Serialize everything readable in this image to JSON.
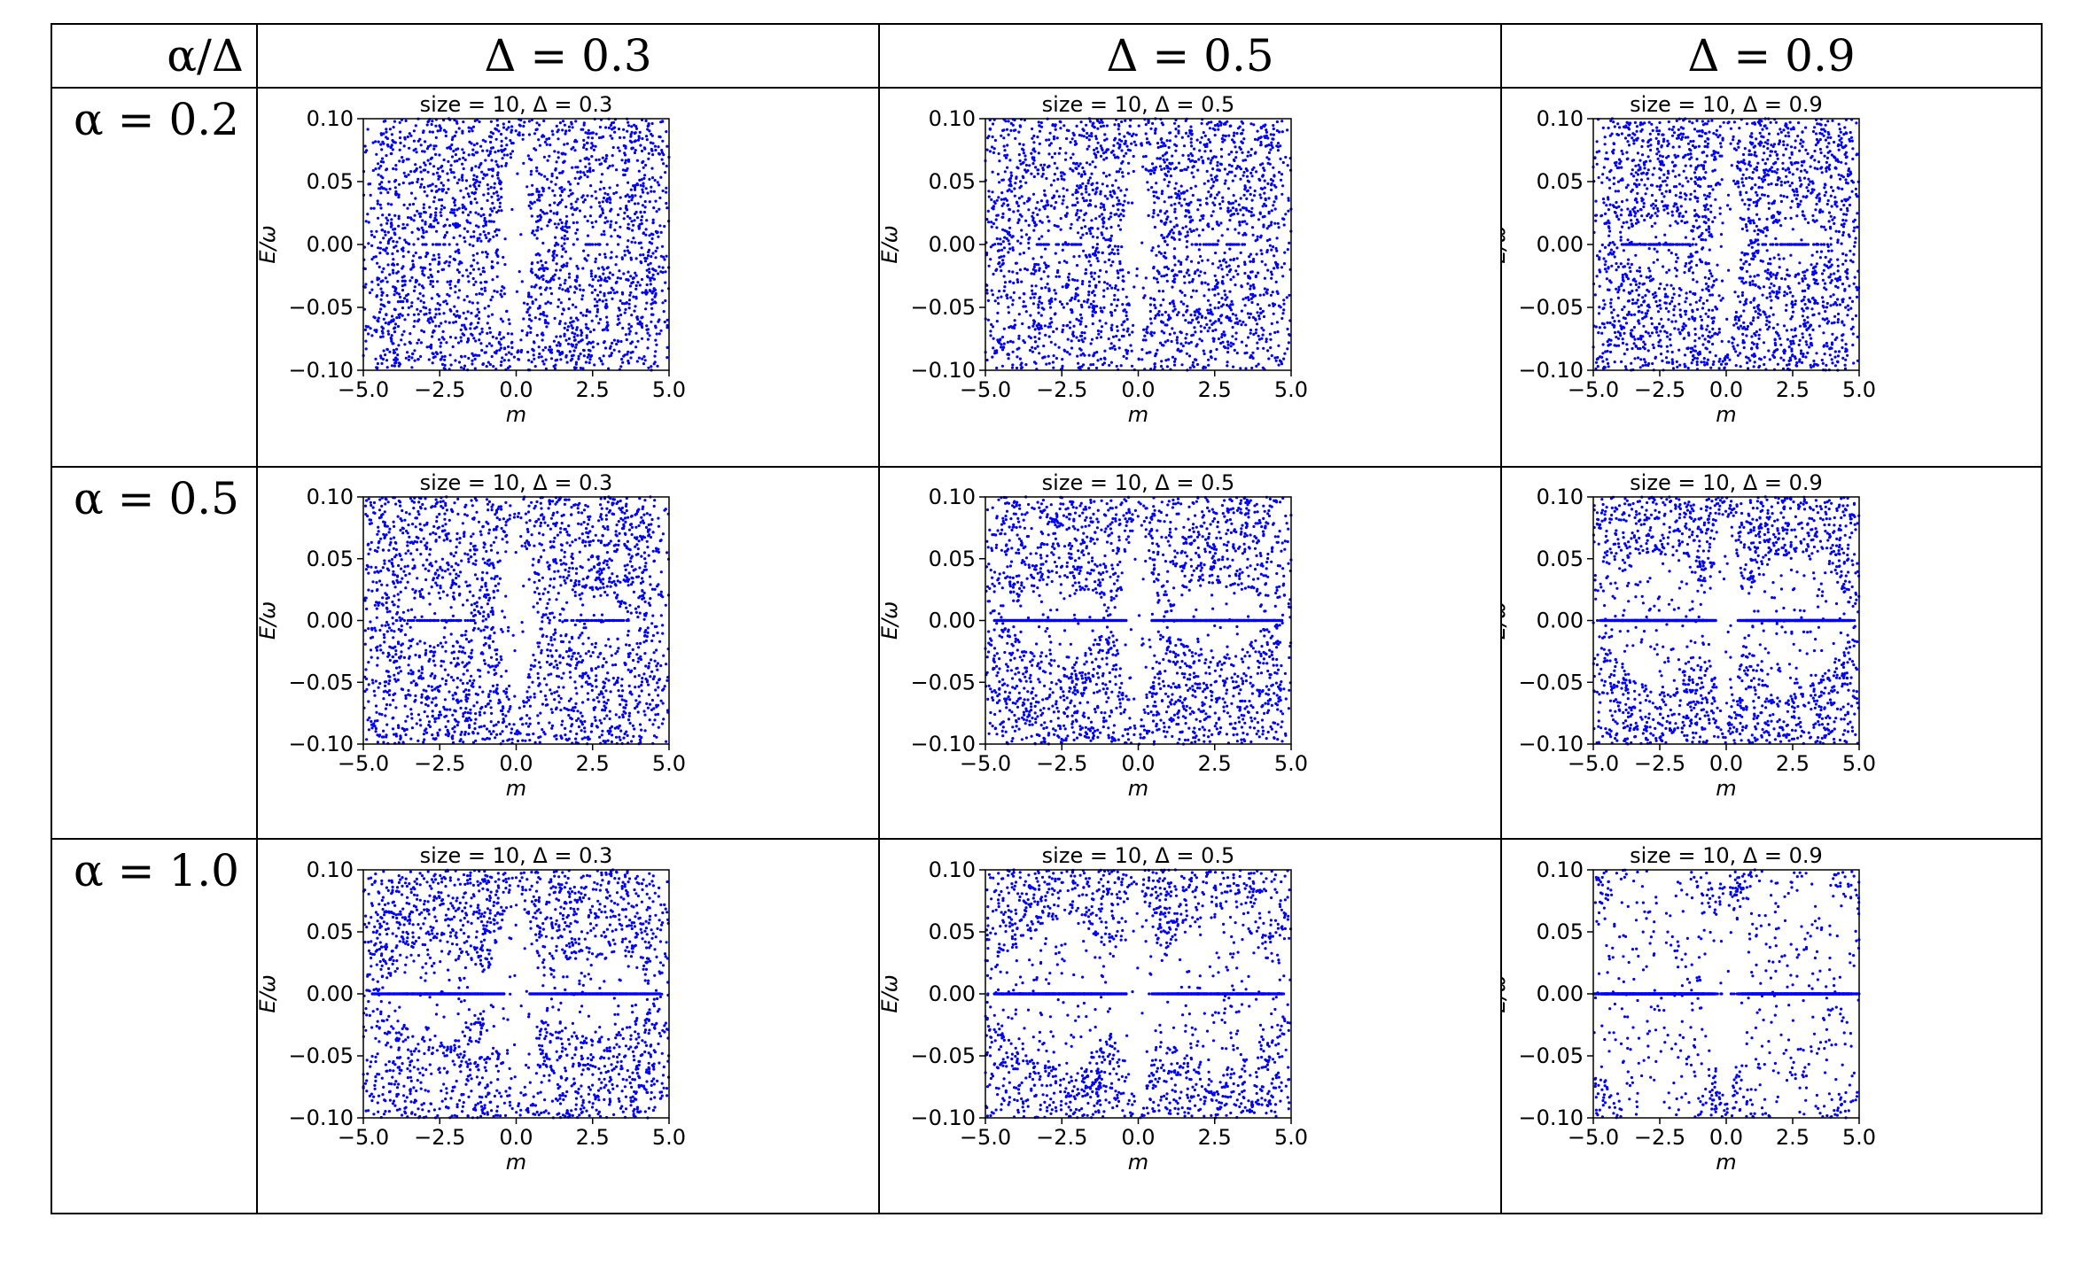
{
  "table": {
    "corner_label": "α/Δ",
    "columns": [
      "Δ = 0.3",
      "Δ = 0.5",
      "Δ = 0.9"
    ],
    "rows": [
      "α = 0.2",
      "α = 0.5",
      "α = 1.0"
    ]
  },
  "chart_data": [
    {
      "type": "scatter",
      "title": "size = 10,  Δ = 0.3",
      "xlabel": "m",
      "ylabel": "E/ω",
      "xlim": [
        -5.0,
        5.0
      ],
      "ylim": [
        -0.1,
        0.1
      ],
      "xticks": [
        -5.0,
        -2.5,
        0.0,
        2.5,
        5.0
      ],
      "yticks": [
        0.1,
        0.05,
        0.0,
        -0.05,
        -0.1
      ],
      "color": "#0000ff",
      "alpha": 0.2,
      "delta": 0.3,
      "size": 10
    },
    {
      "type": "scatter",
      "title": "size = 10,  Δ = 0.5",
      "xlabel": "m",
      "ylabel": "E/ω",
      "xlim": [
        -5.0,
        5.0
      ],
      "ylim": [
        -0.1,
        0.1
      ],
      "xticks": [
        -5.0,
        -2.5,
        0.0,
        2.5,
        5.0
      ],
      "yticks": [
        0.1,
        0.05,
        0.0,
        -0.05,
        -0.1
      ],
      "color": "#0000ff",
      "alpha": 0.2,
      "delta": 0.5,
      "size": 10
    },
    {
      "type": "scatter",
      "title": "size = 10,  Δ = 0.9",
      "xlabel": "m",
      "ylabel": "E/ω",
      "xlim": [
        -5.0,
        5.0
      ],
      "ylim": [
        -0.1,
        0.1
      ],
      "xticks": [
        -5.0,
        -2.5,
        0.0,
        2.5,
        5.0
      ],
      "yticks": [
        0.1,
        0.05,
        0.0,
        -0.05,
        -0.1
      ],
      "color": "#0000ff",
      "alpha": 0.2,
      "delta": 0.9,
      "size": 10
    },
    {
      "type": "scatter",
      "title": "size = 10,  Δ = 0.3",
      "xlabel": "m",
      "ylabel": "E/ω",
      "xlim": [
        -5.0,
        5.0
      ],
      "ylim": [
        -0.1,
        0.1
      ],
      "xticks": [
        -5.0,
        -2.5,
        0.0,
        2.5,
        5.0
      ],
      "yticks": [
        0.1,
        0.05,
        0.0,
        -0.05,
        -0.1
      ],
      "color": "#0000ff",
      "alpha": 0.5,
      "delta": 0.3,
      "size": 10
    },
    {
      "type": "scatter",
      "title": "size = 10,  Δ = 0.5",
      "xlabel": "m",
      "ylabel": "E/ω",
      "xlim": [
        -5.0,
        5.0
      ],
      "ylim": [
        -0.1,
        0.1
      ],
      "xticks": [
        -5.0,
        -2.5,
        0.0,
        2.5,
        5.0
      ],
      "yticks": [
        0.1,
        0.05,
        0.0,
        -0.05,
        -0.1
      ],
      "color": "#0000ff",
      "alpha": 0.5,
      "delta": 0.5,
      "size": 10
    },
    {
      "type": "scatter",
      "title": "size = 10,  Δ = 0.9",
      "xlabel": "m",
      "ylabel": "E/ω",
      "xlim": [
        -5.0,
        5.0
      ],
      "ylim": [
        -0.1,
        0.1
      ],
      "xticks": [
        -5.0,
        -2.5,
        0.0,
        2.5,
        5.0
      ],
      "yticks": [
        0.1,
        0.05,
        0.0,
        -0.05,
        -0.1
      ],
      "color": "#0000ff",
      "alpha": 0.5,
      "delta": 0.9,
      "size": 10
    },
    {
      "type": "scatter",
      "title": "size = 10,  Δ = 0.3",
      "xlabel": "m",
      "ylabel": "E/ω",
      "xlim": [
        -5.0,
        5.0
      ],
      "ylim": [
        -0.1,
        0.1
      ],
      "xticks": [
        -5.0,
        -2.5,
        0.0,
        2.5,
        5.0
      ],
      "yticks": [
        0.1,
        0.05,
        0.0,
        -0.05,
        -0.1
      ],
      "color": "#0000ff",
      "alpha": 1.0,
      "delta": 0.3,
      "size": 10
    },
    {
      "type": "scatter",
      "title": "size = 10,  Δ = 0.5",
      "xlabel": "m",
      "ylabel": "E/ω",
      "xlim": [
        -5.0,
        5.0
      ],
      "ylim": [
        -0.1,
        0.1
      ],
      "xticks": [
        -5.0,
        -2.5,
        0.0,
        2.5,
        5.0
      ],
      "yticks": [
        0.1,
        0.05,
        0.0,
        -0.05,
        -0.1
      ],
      "color": "#0000ff",
      "alpha": 1.0,
      "delta": 0.5,
      "size": 10
    },
    {
      "type": "scatter",
      "title": "size = 10,  Δ = 0.9",
      "xlabel": "m",
      "ylabel": "E/ω",
      "xlim": [
        -5.0,
        5.0
      ],
      "ylim": [
        -0.1,
        0.1
      ],
      "xticks": [
        -5.0,
        -2.5,
        0.0,
        2.5,
        5.0
      ],
      "yticks": [
        0.1,
        0.05,
        0.0,
        -0.05,
        -0.1
      ],
      "color": "#0000ff",
      "alpha": 1.0,
      "delta": 0.9,
      "size": 10
    }
  ]
}
